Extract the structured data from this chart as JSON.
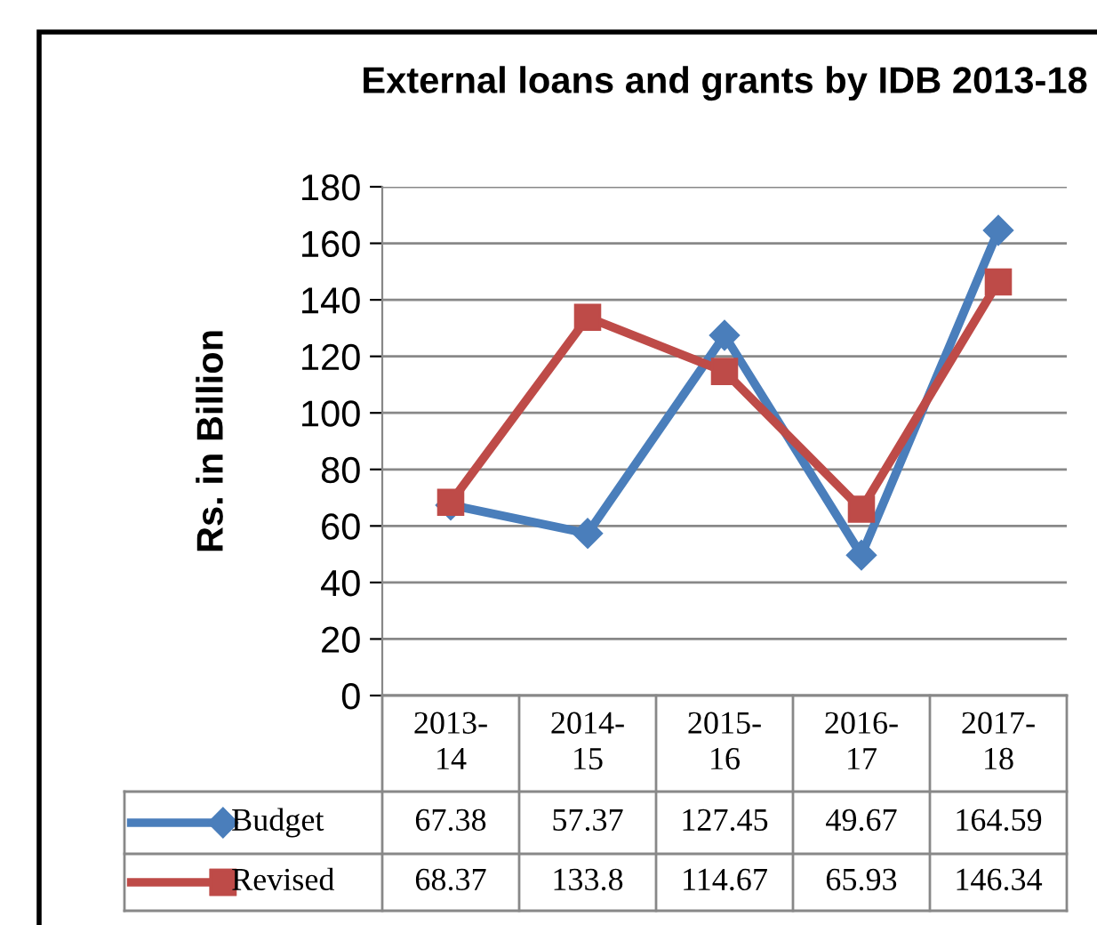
{
  "chart_data": {
    "type": "line",
    "title": "External loans and grants by IDB 2013-18",
    "ylabel": "Rs. in Billion",
    "categories": [
      "2013-\n14",
      "2014-\n15",
      "2015-\n16",
      "2016-\n17",
      "2017-\n18"
    ],
    "series": [
      {
        "name": "Budget",
        "color": "#4a7ebb",
        "marker": "diamond",
        "values": [
          67.38,
          57.37,
          127.45,
          49.67,
          164.59
        ]
      },
      {
        "name": "Revised",
        "color": "#be4b48",
        "marker": "square",
        "values": [
          68.37,
          133.8,
          114.67,
          65.93,
          146.34
        ]
      }
    ],
    "ylim": [
      0,
      180
    ],
    "yticks": [
      0,
      20,
      40,
      60,
      80,
      100,
      120,
      140,
      160,
      180
    ],
    "grid": "y",
    "legend": "bottom",
    "data_labels": true,
    "line_style": "solid"
  }
}
